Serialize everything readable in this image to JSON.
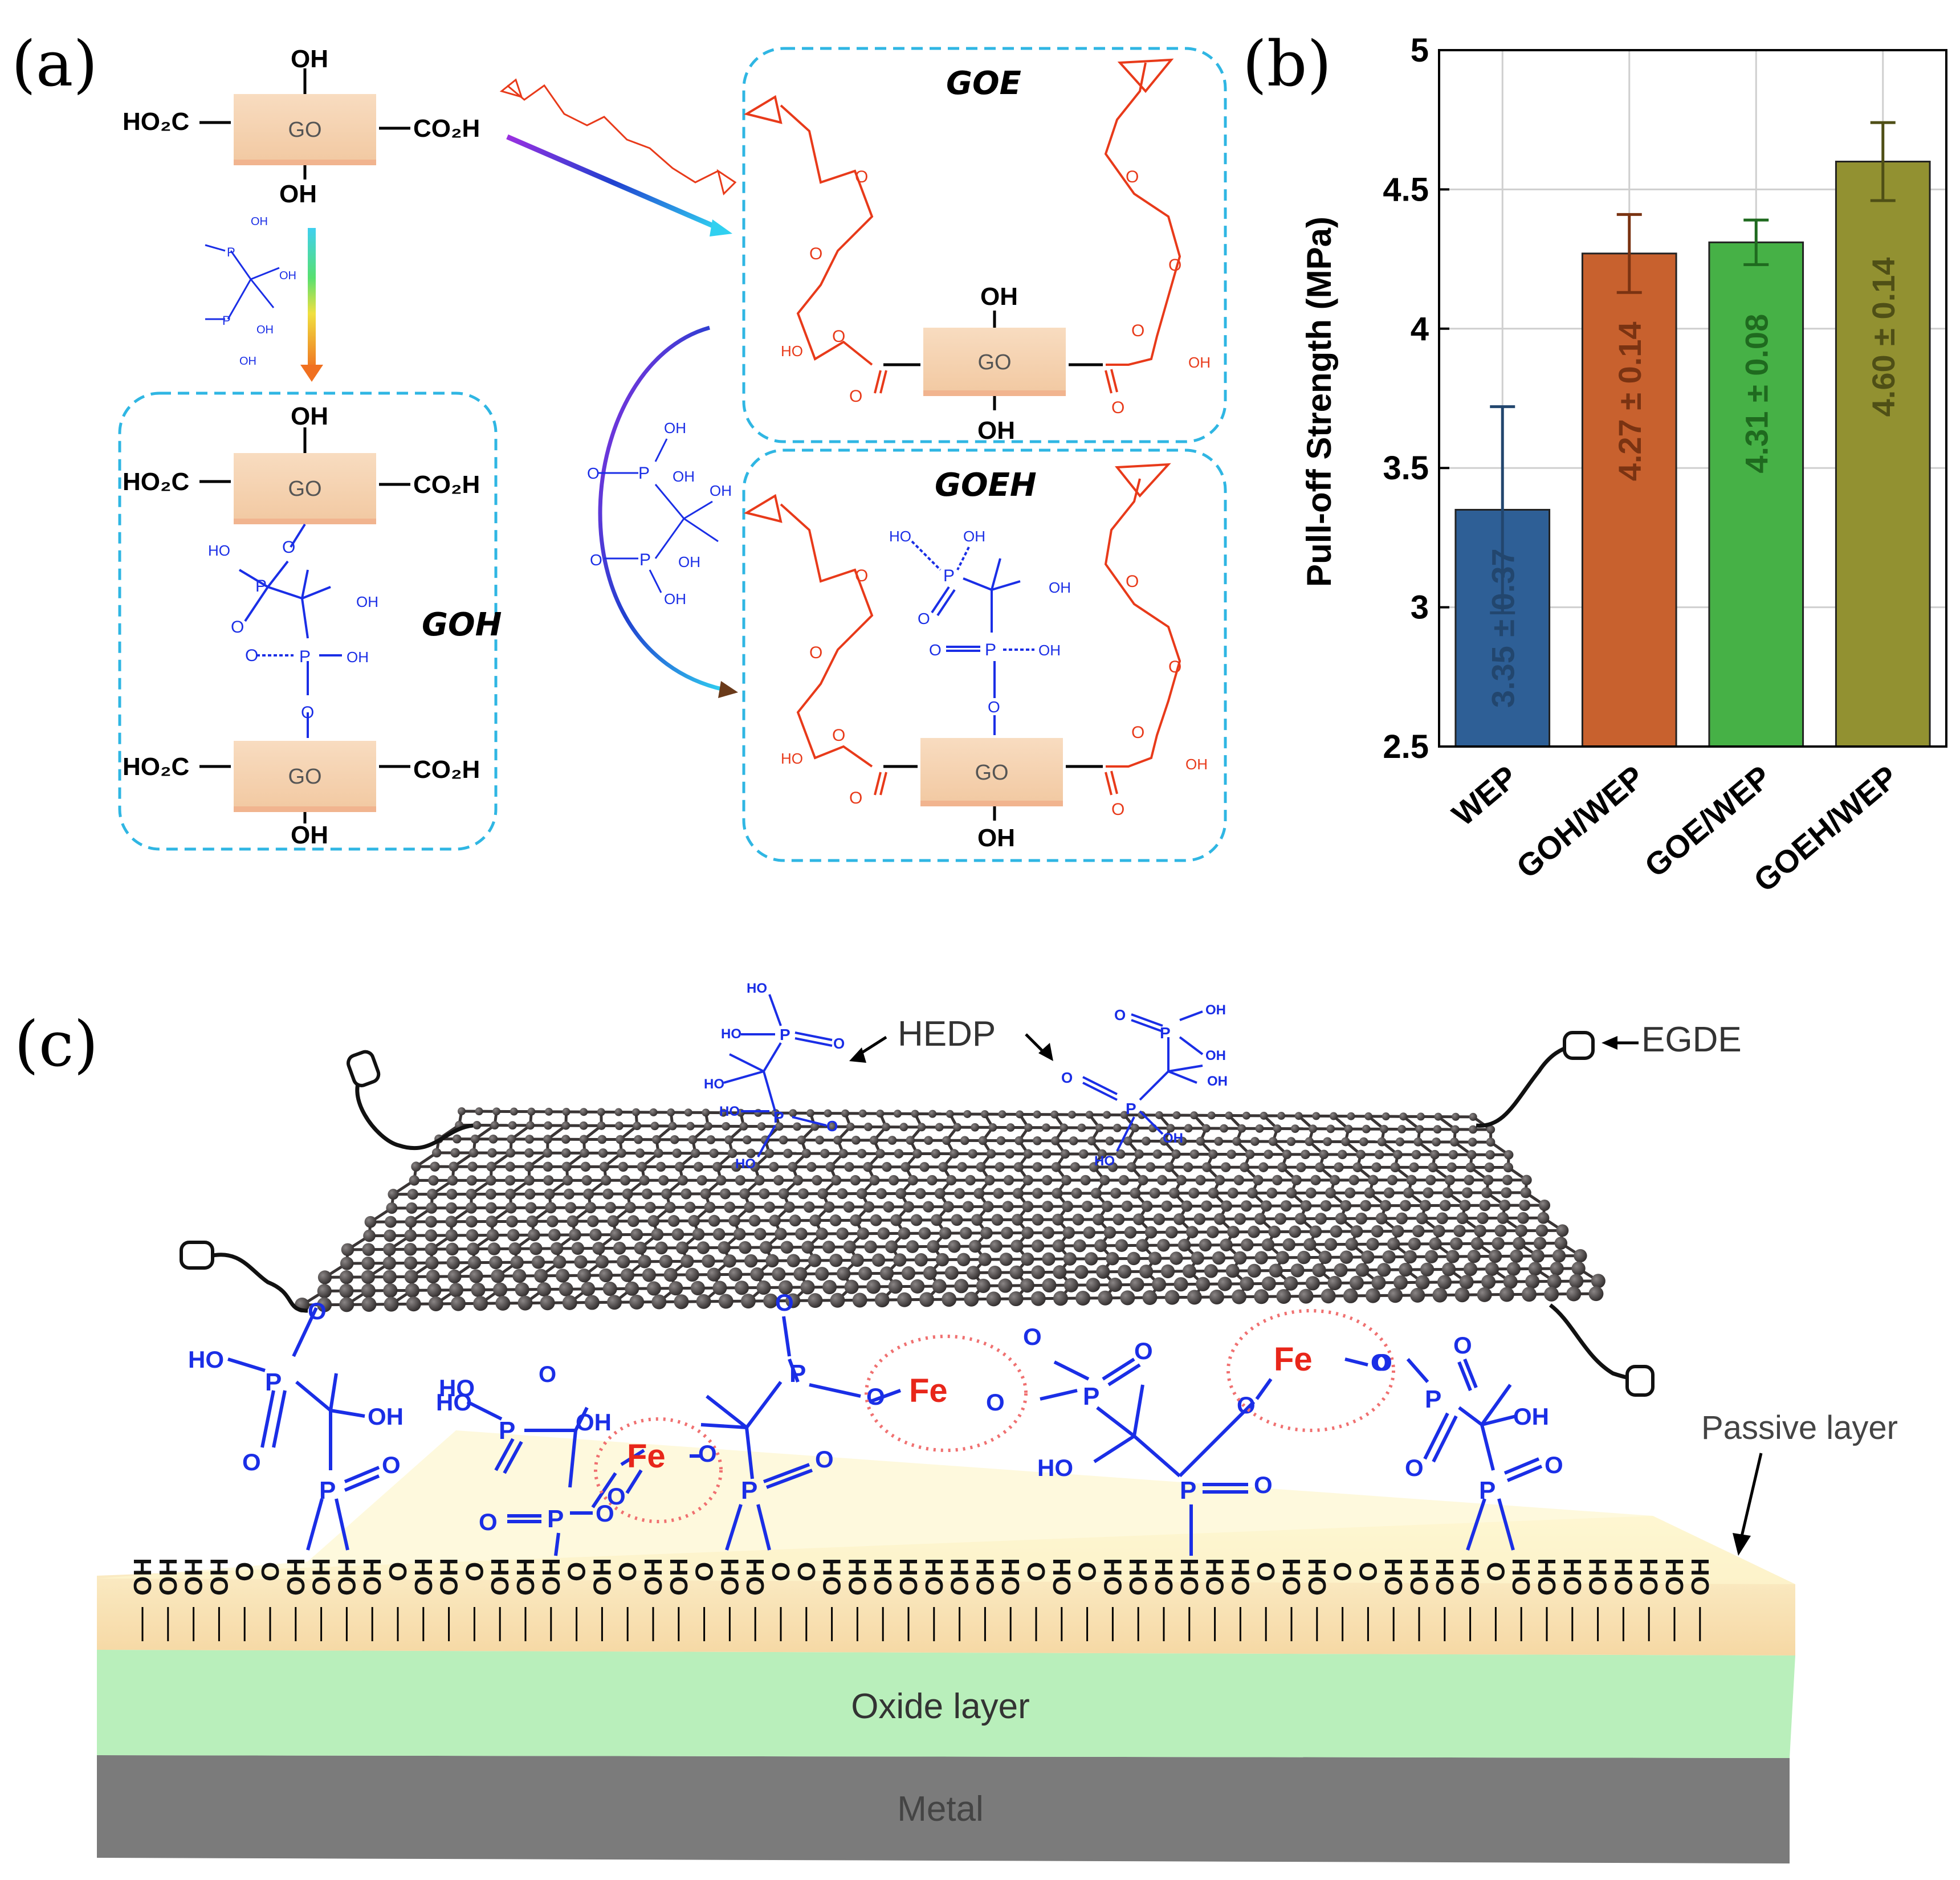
{
  "panels": {
    "a": "(a)",
    "b": "(b)",
    "c": "(c)"
  },
  "scheme": {
    "go_label": "GO",
    "oh": "OH",
    "ho2c": "HO₂C",
    "co2h": "CO₂H",
    "ho": "HO",
    "o": "O",
    "p": "P",
    "box_goe": "GOE",
    "box_goh": "GOH",
    "box_goeh": "GOEH"
  },
  "chart_data": {
    "type": "bar",
    "categories": [
      "WEP",
      "GOH/WEP",
      "GOE/WEP",
      "GOEH/WEP"
    ],
    "values": [
      3.35,
      4.27,
      4.31,
      4.6
    ],
    "errors": [
      0.37,
      0.14,
      0.08,
      0.14
    ],
    "value_labels": [
      "3.35 ± 0.37",
      "4.27 ± 0.14",
      "4.31 ± 0.08",
      "4.60 ± 0.14"
    ],
    "colors": [
      "#2e5f96",
      "#c8612e",
      "#46b146",
      "#929131"
    ],
    "label_colors": [
      "#22466e",
      "#7a3312",
      "#1f6a1f",
      "#4f4f16"
    ],
    "ylabel": "Pull-off Strength (MPa)",
    "xlabel": "",
    "ylim": [
      2.5,
      5
    ],
    "yticks": [
      "2.5",
      "3",
      "3.5",
      "4",
      "4.5",
      "5"
    ],
    "grid": true
  },
  "mechanism": {
    "hedp": "HEDP",
    "egde": "EGDE",
    "passive_layer": "Passive layer",
    "oxide_layer": "Oxide layer",
    "metal": "Metal",
    "fe": "Fe",
    "oh": "OH",
    "o": "O",
    "p": "P",
    "ho": "HO",
    "colors": {
      "phosphonate": "#1a2ee6",
      "iron": "#e8261a",
      "passive": "#f9d9a6",
      "oxide": "#b9efbb",
      "metal": "#7d7d7d",
      "graphene": "#3a3535"
    }
  }
}
